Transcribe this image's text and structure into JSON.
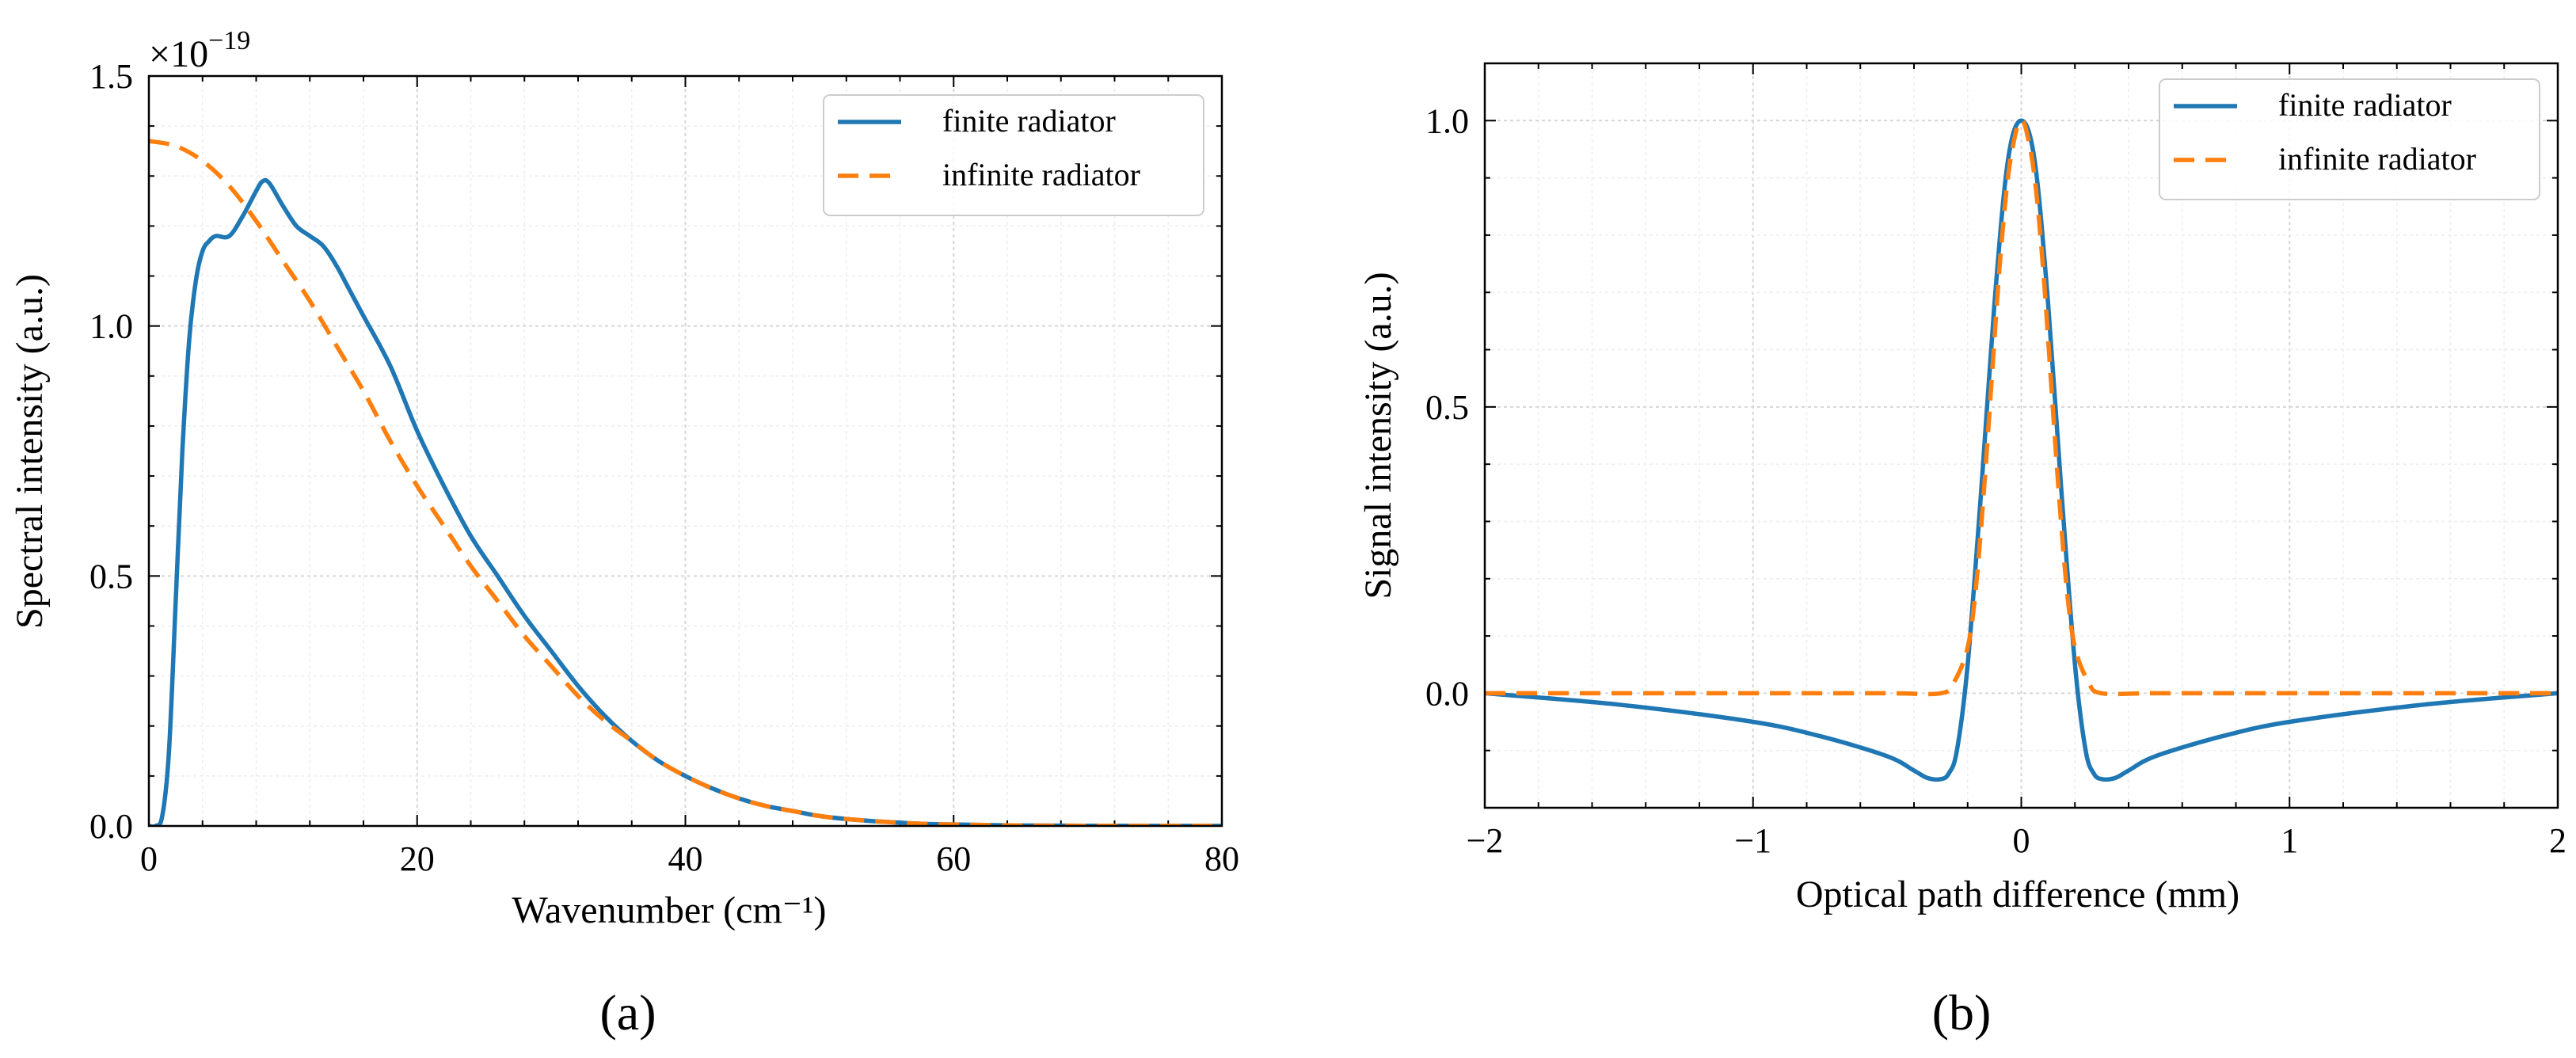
{
  "chart_data": [
    {
      "panel_label": "(a)",
      "type": "line",
      "xlabel": "Wavenumber (cm⁻¹)",
      "ylabel": "Spectral intensity (a.u.)",
      "y_scale_factor_base": "×10",
      "y_scale_factor_exponent": "−19",
      "xlim": [
        0,
        80
      ],
      "ylim": [
        0,
        1.5
      ],
      "xticks": [
        0,
        20,
        40,
        60,
        80
      ],
      "xtick_labels": [
        "0",
        "20",
        "40",
        "60",
        "80"
      ],
      "yticks": [
        0,
        0.5,
        1.0,
        1.5
      ],
      "ytick_labels": [
        "0.0",
        "0.5",
        "1.0",
        "1.5"
      ],
      "grid": true,
      "legend_position": "top-right",
      "series": [
        {
          "name": "finite radiator",
          "color": "#1f77b4",
          "style": "solid",
          "x": [
            0,
            0.5,
            1,
            1.5,
            2,
            2.5,
            3,
            3.5,
            4,
            4.5,
            5,
            6,
            7,
            8,
            8.5,
            9,
            10,
            11,
            12,
            13,
            14,
            15,
            16,
            18,
            20,
            22,
            24,
            26,
            28,
            30,
            32,
            34,
            36,
            38,
            40,
            42,
            44,
            46,
            48,
            50,
            52,
            55,
            58,
            60,
            65,
            70,
            75,
            80
          ],
          "y": [
            0,
            0.0,
            0.02,
            0.15,
            0.45,
            0.75,
            0.97,
            1.09,
            1.15,
            1.17,
            1.18,
            1.18,
            1.22,
            1.27,
            1.29,
            1.285,
            1.24,
            1.2,
            1.18,
            1.16,
            1.12,
            1.07,
            1.02,
            0.92,
            0.79,
            0.68,
            0.58,
            0.5,
            0.42,
            0.35,
            0.28,
            0.22,
            0.17,
            0.13,
            0.1,
            0.075,
            0.055,
            0.04,
            0.03,
            0.02,
            0.014,
            0.008,
            0.004,
            0.003,
            0.001,
            0.0005,
            0.0002,
            0.0001
          ]
        },
        {
          "name": "infinite radiator",
          "color": "#ff7f0e",
          "style": "dashed",
          "x": [
            0,
            2,
            4,
            6,
            8,
            10,
            12,
            14,
            16,
            18,
            20,
            22,
            24,
            26,
            28,
            30,
            32,
            34,
            36,
            38,
            40,
            42,
            44,
            46,
            48,
            50,
            52,
            55,
            58,
            60,
            65,
            70,
            75,
            80
          ],
          "y": [
            1.37,
            1.36,
            1.33,
            1.28,
            1.21,
            1.13,
            1.05,
            0.96,
            0.87,
            0.77,
            0.68,
            0.6,
            0.52,
            0.45,
            0.38,
            0.32,
            0.26,
            0.21,
            0.17,
            0.13,
            0.1,
            0.075,
            0.055,
            0.04,
            0.03,
            0.02,
            0.014,
            0.008,
            0.004,
            0.003,
            0.001,
            0.0005,
            0.0002,
            0.0001
          ]
        }
      ]
    },
    {
      "panel_label": "(b)",
      "type": "line",
      "xlabel": "Optical path difference (mm)",
      "ylabel": "Signal intensity (a.u.)",
      "xlim": [
        -2,
        2
      ],
      "ylim": [
        -0.2,
        1.1
      ],
      "xticks": [
        -2,
        -1,
        0,
        1,
        2
      ],
      "xtick_labels": [
        "−2",
        "−1",
        "0",
        "1",
        "2"
      ],
      "yticks": [
        0,
        0.5,
        1.0
      ],
      "ytick_labels": [
        "0.0",
        "0.5",
        "1.0"
      ],
      "grid": true,
      "legend_position": "top-right",
      "series": [
        {
          "name": "finite radiator",
          "color": "#1f77b4",
          "style": "solid",
          "x": [
            -2,
            -1.5,
            -1,
            -0.75,
            -0.5,
            -0.4,
            -0.35,
            -0.3,
            -0.27,
            -0.24,
            -0.2,
            -0.15,
            -0.1,
            -0.05,
            0,
            0.05,
            0.1,
            0.15,
            0.2,
            0.24,
            0.27,
            0.3,
            0.35,
            0.4,
            0.5,
            0.75,
            1,
            1.5,
            2
          ],
          "y": [
            0,
            -0.02,
            -0.05,
            -0.075,
            -0.11,
            -0.135,
            -0.148,
            -0.15,
            -0.14,
            -0.1,
            0.05,
            0.35,
            0.68,
            0.93,
            1.0,
            0.93,
            0.68,
            0.35,
            0.05,
            -0.1,
            -0.14,
            -0.15,
            -0.148,
            -0.135,
            -0.11,
            -0.075,
            -0.05,
            -0.02,
            0
          ]
        },
        {
          "name": "infinite radiator",
          "color": "#ff7f0e",
          "style": "dashed",
          "x": [
            -2,
            -1,
            -0.5,
            -0.3,
            -0.25,
            -0.2,
            -0.17,
            -0.14,
            -0.11,
            -0.08,
            -0.05,
            -0.02,
            0,
            0.02,
            0.05,
            0.08,
            0.11,
            0.14,
            0.17,
            0.2,
            0.25,
            0.3,
            0.5,
            1,
            2
          ],
          "y": [
            0,
            0,
            0,
            0.0,
            0.02,
            0.08,
            0.18,
            0.35,
            0.55,
            0.75,
            0.9,
            0.98,
            1.0,
            0.98,
            0.9,
            0.75,
            0.55,
            0.35,
            0.18,
            0.08,
            0.02,
            0.0,
            0,
            0,
            0
          ]
        }
      ]
    }
  ]
}
